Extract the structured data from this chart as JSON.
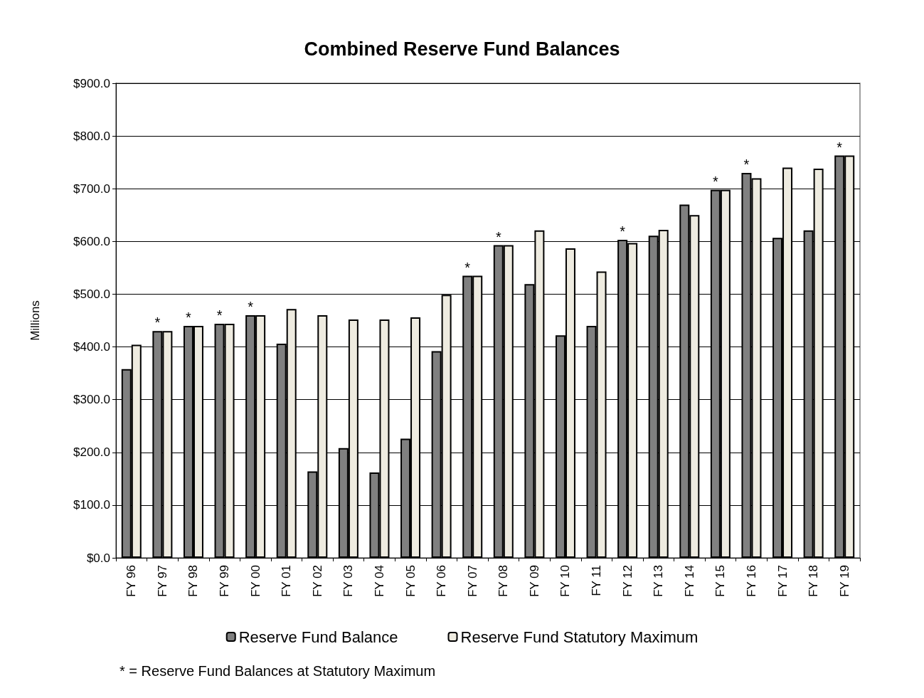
{
  "chart_data": {
    "type": "bar",
    "title": "Combined Reserve Fund Balances",
    "ylabel": "Millions",
    "categories": [
      "FY 96",
      "FY 97",
      "FY 98",
      "FY 99",
      "FY 00",
      "FY 01",
      "FY 02",
      "FY 03",
      "FY 04",
      "FY 05",
      "FY 06",
      "FY 07",
      "FY 08",
      "FY 09",
      "FY 10",
      "FY 11",
      "FY 12",
      "FY 13",
      "FY 14",
      "FY 15",
      "FY 16",
      "FY 17",
      "FY 18",
      "FY 19"
    ],
    "series": [
      {
        "name": "Reserve Fund Balance",
        "color": "#808080",
        "values": [
          358,
          430,
          440,
          444,
          460,
          406,
          164,
          208,
          162,
          226,
          392,
          535,
          593,
          519,
          422,
          440,
          603,
          611,
          670,
          698,
          730,
          607,
          621,
          763
        ]
      },
      {
        "name": "Reserve Fund Statutory Maximum",
        "color": "#eeebe0",
        "values": [
          404,
          430,
          440,
          444,
          460,
          472,
          460,
          452,
          452,
          456,
          499,
          535,
          593,
          621,
          587,
          543,
          597,
          622,
          650,
          698,
          720,
          740,
          738,
          763
        ]
      }
    ],
    "ylim": [
      0,
      900
    ],
    "yticks": [
      {
        "value": 0,
        "label": "$0.0"
      },
      {
        "value": 100,
        "label": "$100.0"
      },
      {
        "value": 200,
        "label": "$200.0"
      },
      {
        "value": 300,
        "label": "$300.0"
      },
      {
        "value": 400,
        "label": "$400.0"
      },
      {
        "value": 500,
        "label": "$500.0"
      },
      {
        "value": 600,
        "label": "$600.0"
      },
      {
        "value": 700,
        "label": "$700.0"
      },
      {
        "value": 800,
        "label": "$800.0"
      },
      {
        "value": 900,
        "label": "$900.0"
      }
    ],
    "grid": "y",
    "legend": "bottom",
    "annotations": [
      {
        "text": "*",
        "x": "FY 97",
        "y": 430
      },
      {
        "text": "*",
        "x": "FY 98",
        "y": 440
      },
      {
        "text": "*",
        "x": "FY 99",
        "y": 444
      },
      {
        "text": "*",
        "x": "FY 00",
        "y": 460
      },
      {
        "text": "*",
        "x": "FY 07",
        "y": 535
      },
      {
        "text": "*",
        "x": "FY 08",
        "y": 593
      },
      {
        "text": "*",
        "x": "FY 12",
        "y": 603
      },
      {
        "text": "*",
        "x": "FY 15",
        "y": 698
      },
      {
        "text": "*",
        "x": "FY 16",
        "y": 730
      },
      {
        "text": "*",
        "x": "FY 19",
        "y": 763
      },
      "* = Reserve Fund Balances at Statutory Maximum"
    ]
  }
}
